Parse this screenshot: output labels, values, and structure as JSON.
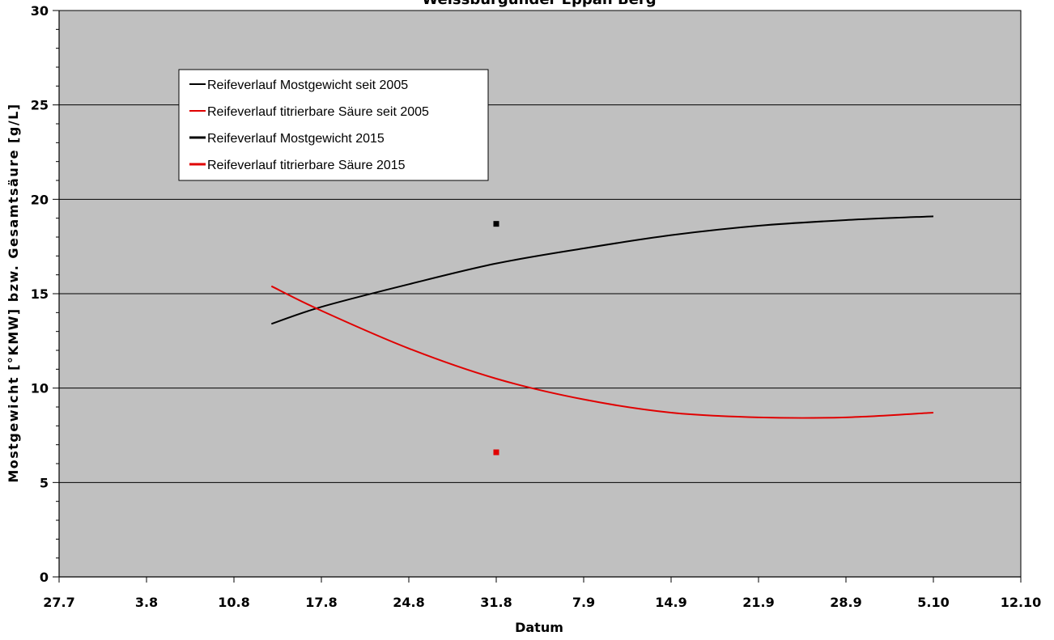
{
  "chart_data": {
    "type": "line",
    "title": "Weissburgunder Eppan Berg",
    "xlabel": "Datum",
    "ylabel": "Mostgewicht [°KMW] bzw. Gesamtsäure [g/L]",
    "ylim": [
      0,
      30
    ],
    "yticks": [
      0,
      5,
      10,
      15,
      20,
      25,
      30
    ],
    "x_tick_labels": [
      "27.7",
      "3.8",
      "10.8",
      "17.8",
      "24.8",
      "31.8",
      "7.9",
      "14.9",
      "21.9",
      "28.9",
      "5.10",
      "12.10"
    ],
    "x_range_days": [
      0,
      77
    ],
    "grid": true,
    "legend_position": "top-left",
    "colors": {
      "plot_bg": "#c0c0c0",
      "black_series": "#000000",
      "red_series": "#e00000"
    },
    "series": [
      {
        "name": "Reifeverlauf Mostgewicht seit 2005",
        "style": "line",
        "x_days": [
          17,
          21,
          28,
          35,
          42,
          49,
          56,
          63,
          70
        ],
        "values": [
          13.4,
          14.3,
          15.5,
          16.6,
          17.4,
          18.1,
          18.6,
          18.9,
          19.1
        ]
      },
      {
        "name": "Reifeverlauf titrierbare Säure seit 2005",
        "style": "line",
        "x_days": [
          17,
          21,
          28,
          35,
          42,
          49,
          56,
          63,
          70
        ],
        "values": [
          15.4,
          14.1,
          12.1,
          10.5,
          9.4,
          8.7,
          8.45,
          8.45,
          8.7
        ]
      },
      {
        "name": "Reifeverlauf Mostgewicht 2015",
        "style": "marker",
        "x_days": [
          35
        ],
        "values": [
          18.7
        ]
      },
      {
        "name": "Reifeverlauf titrierbare Säure 2015",
        "style": "marker",
        "x_days": [
          35
        ],
        "values": [
          6.6
        ]
      }
    ]
  }
}
